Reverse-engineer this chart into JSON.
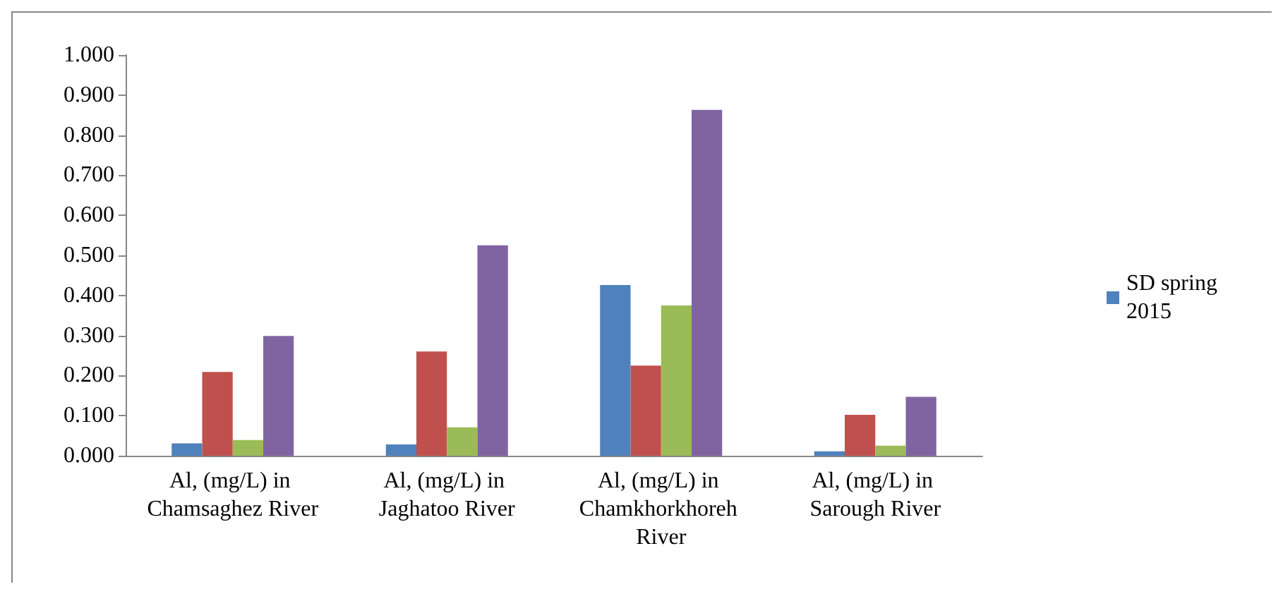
{
  "chart_data": {
    "type": "bar",
    "categories": [
      "Al, (mg/L) in Chamsaghez River",
      "Al, (mg/L) in Jaghatoo River",
      "Al, (mg/L) in Chamkhorkhoreh River",
      "Al, (mg/L) in Sarough River"
    ],
    "series": [
      {
        "name": "SD spring 2015",
        "color": "#4f81bd",
        "values": [
          0.031,
          0.028,
          0.426,
          0.011
        ]
      },
      {
        "color": "#c0504d",
        "values": [
          0.209,
          0.26,
          0.225,
          0.102
        ]
      },
      {
        "color": "#9bbb59",
        "values": [
          0.039,
          0.071,
          0.375,
          0.025
        ]
      },
      {
        "color": "#8064a2",
        "values": [
          0.299,
          0.525,
          0.863,
          0.147
        ]
      }
    ],
    "ylim": [
      0,
      1
    ],
    "yticks": [
      {
        "value": 0,
        "label": "0.000"
      },
      {
        "value": 0.1,
        "label": "0.100"
      },
      {
        "value": 0.2,
        "label": "0.200"
      },
      {
        "value": 0.3,
        "label": "0.300"
      },
      {
        "value": 0.4,
        "label": "0.400"
      },
      {
        "value": 0.5,
        "label": "0.500"
      },
      {
        "value": 0.6,
        "label": "0.600"
      },
      {
        "value": 0.7,
        "label": "0.700"
      },
      {
        "value": 0.8,
        "label": "0.800"
      },
      {
        "value": 0.9,
        "label": "0.900"
      },
      {
        "value": 1,
        "label": "1.000"
      }
    ],
    "grid": false,
    "legend": "right"
  }
}
